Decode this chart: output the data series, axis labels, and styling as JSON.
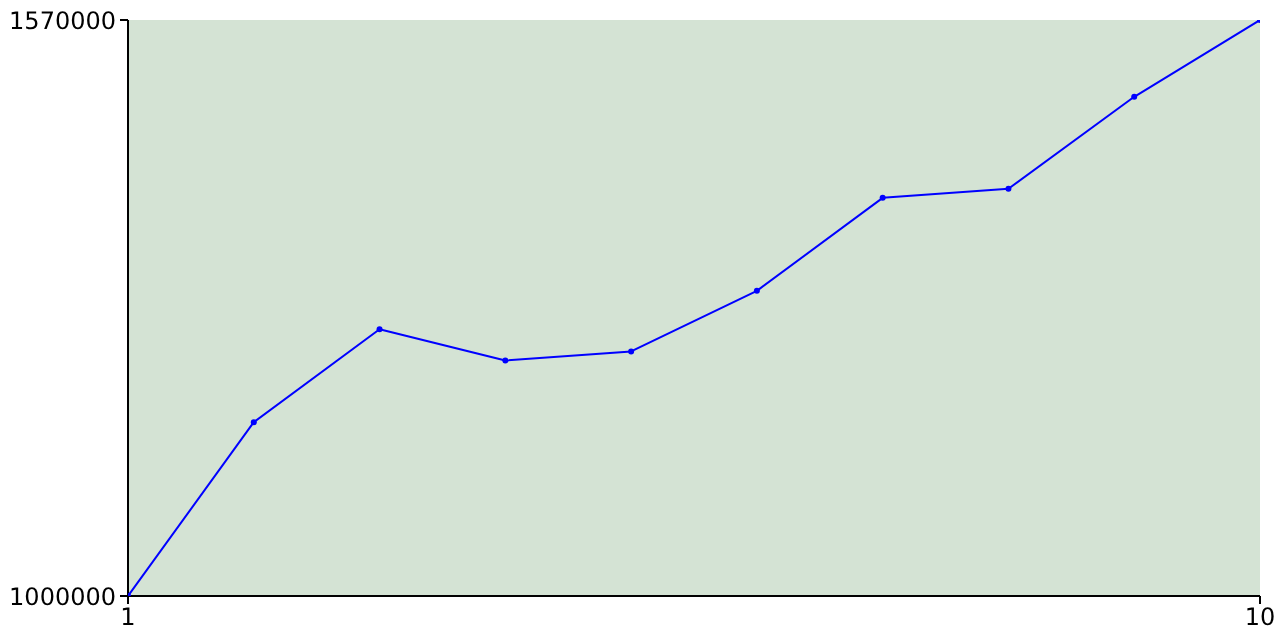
{
  "chart_data": {
    "type": "line",
    "x": [
      1,
      2,
      3,
      4,
      5,
      6,
      7,
      8,
      9,
      10
    ],
    "series": [
      {
        "color": "#0000ff",
        "values": [
          1000000,
          1172000,
          1264000,
          1233000,
          1242000,
          1302000,
          1394000,
          1403000,
          1494000,
          1570000
        ]
      }
    ],
    "xlim": [
      1,
      10
    ],
    "xticks": [
      1,
      10
    ],
    "ylim": [
      1000000,
      1570000
    ],
    "yticks": [
      1000000,
      1570000
    ],
    "marker": "circle",
    "line_style": "solid"
  }
}
